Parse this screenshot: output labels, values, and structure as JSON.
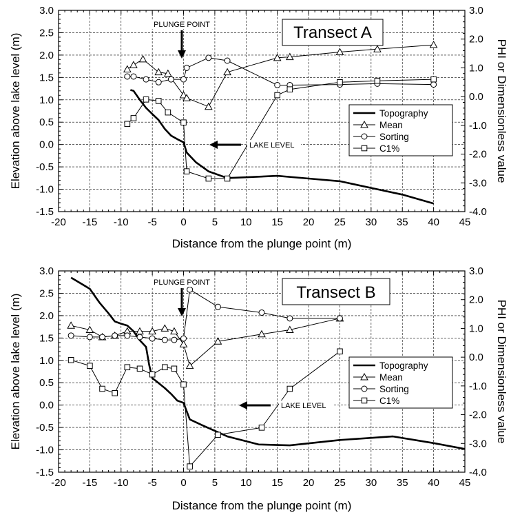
{
  "chart_data": [
    {
      "type": "line",
      "panel_title": "Transect A",
      "xlabel": "Distance from the plunge point (m)",
      "ylabel_left": "Elevation above lake level (m)",
      "ylabel_right": "PHI or Dimensionless value",
      "xlim": [
        -20,
        45
      ],
      "ylim_left": [
        -1.5,
        3.0
      ],
      "ylim_right": [
        -4.0,
        3.0
      ],
      "x_ticks": [
        "-20",
        "-15",
        "-10",
        "-5",
        "0",
        "5",
        "10",
        "15",
        "20",
        "25",
        "30",
        "35",
        "40",
        "45"
      ],
      "y_left_ticks": [
        "3.0",
        "2.5",
        "2.0",
        "1.5",
        "1.0",
        "0.5",
        "0.0",
        "-0.5",
        "-1.0",
        "-1.5"
      ],
      "y_right_ticks": [
        "3.0",
        "2.0",
        "1.0",
        "0.0",
        "-1.0",
        "-2.0",
        "-3.0",
        "-4.0"
      ],
      "grid": true,
      "legend_position": "right-center",
      "annotations": {
        "plunge_point": "PLUNGE POINT",
        "lake_level": "LAKE LEVEL"
      },
      "series": [
        {
          "name": "Topography",
          "axis": "left",
          "marker": "none",
          "x": [
            -8.5,
            -8,
            -7,
            -6,
            -5,
            -4,
            -3,
            -2,
            -1,
            0,
            0.5,
            2,
            4,
            7,
            15,
            20,
            25,
            30,
            35,
            40
          ],
          "y": [
            1.22,
            1.2,
            1.0,
            0.82,
            0.68,
            0.55,
            0.35,
            0.2,
            0.12,
            0.05,
            -0.18,
            -0.4,
            -0.6,
            -0.75,
            -0.7,
            -0.76,
            -0.82,
            -0.97,
            -1.12,
            -1.32
          ]
        },
        {
          "name": "Mean",
          "axis": "right",
          "marker": "triangle",
          "x": [
            -9,
            -8,
            -6.5,
            -4,
            -2.5,
            0,
            0.5,
            4,
            7,
            15,
            17,
            25,
            31,
            40
          ],
          "y": [
            0.95,
            1.1,
            1.3,
            0.85,
            0.8,
            0.05,
            -0.05,
            -0.35,
            0.85,
            1.35,
            1.38,
            1.55,
            1.65,
            1.8
          ]
        },
        {
          "name": "Sorting",
          "axis": "right",
          "marker": "circle",
          "x": [
            -9,
            -8,
            -6,
            -4,
            -2,
            0,
            0.5,
            4,
            7,
            15,
            17,
            25,
            31,
            40
          ],
          "y": [
            0.7,
            0.7,
            0.6,
            0.5,
            0.6,
            0.6,
            1.0,
            1.35,
            1.25,
            0.4,
            0.4,
            0.42,
            0.45,
            0.42
          ]
        },
        {
          "name": "C1%",
          "axis": "right",
          "marker": "square",
          "x": [
            -9,
            -8,
            -6,
            -4,
            -2.5,
            0,
            0.5,
            4,
            7,
            15,
            17,
            25,
            31,
            40
          ],
          "y": [
            -0.95,
            -0.75,
            -0.1,
            -0.15,
            -0.55,
            -0.9,
            -2.6,
            -2.85,
            -2.85,
            0.05,
            0.25,
            0.5,
            0.55,
            0.6
          ]
        }
      ]
    },
    {
      "type": "line",
      "panel_title": "Transect B",
      "xlabel": "Distance from the plunge point (m)",
      "ylabel_left": "Elevation above lake level (m)",
      "ylabel_right": "PHI or Dimensionless value",
      "xlim": [
        -20,
        45
      ],
      "ylim_left": [
        -1.5,
        3.0
      ],
      "ylim_right": [
        -4.0,
        3.0
      ],
      "x_ticks": [
        "-20",
        "-15",
        "-10",
        "-5",
        "0",
        "5",
        "10",
        "15",
        "20",
        "25",
        "30",
        "35",
        "40",
        "45"
      ],
      "y_left_ticks": [
        "3.0",
        "2.5",
        "2.0",
        "1.5",
        "1.0",
        "0.5",
        "0.0",
        "-0.5",
        "-1.0",
        "-1.5"
      ],
      "y_right_ticks": [
        "3.0",
        "2.0",
        "1.0",
        "0.0",
        "-1.0",
        "-2.0",
        "-3.0",
        "-4.0"
      ],
      "grid": true,
      "legend_position": "right-center",
      "annotations": {
        "plunge_point": "PLUNGE POINT",
        "lake_level": "LAKE LEVEL"
      },
      "series": [
        {
          "name": "Topography",
          "axis": "left",
          "marker": "none",
          "x": [
            -18,
            -15,
            -13.5,
            -12,
            -11,
            -10,
            -9,
            -8,
            -7,
            -6,
            -5.5,
            -5,
            -4.5,
            -3,
            -2,
            -1,
            0,
            1,
            3,
            7,
            12,
            17,
            25,
            33.5,
            40,
            45
          ],
          "y": [
            2.85,
            2.6,
            2.3,
            2.05,
            1.87,
            1.82,
            1.78,
            1.65,
            1.45,
            1.3,
            0.9,
            0.6,
            0.55,
            0.38,
            0.25,
            0.1,
            0.05,
            -0.32,
            -0.45,
            -0.7,
            -0.88,
            -0.9,
            -0.78,
            -0.7,
            -0.85,
            -0.98
          ]
        },
        {
          "name": "Mean",
          "axis": "right",
          "marker": "triangle",
          "x": [
            -18,
            -15,
            -13,
            -11,
            -9,
            -7,
            -5,
            -3,
            -1.5,
            0,
            1,
            5.5,
            12.5,
            17,
            25
          ],
          "y": [
            1.1,
            0.95,
            0.7,
            0.75,
            0.9,
            0.9,
            0.9,
            1.0,
            0.9,
            0.45,
            -0.3,
            0.55,
            0.8,
            0.95,
            1.35
          ]
        },
        {
          "name": "Sorting",
          "axis": "right",
          "marker": "circle",
          "x": [
            -18,
            -15,
            -13,
            -11,
            -9,
            -7,
            -5,
            -3,
            -1.5,
            0,
            1,
            5.5,
            12.5,
            17,
            25
          ],
          "y": [
            0.75,
            0.7,
            0.7,
            0.75,
            0.75,
            0.7,
            0.65,
            0.6,
            0.6,
            0.65,
            2.35,
            1.75,
            1.55,
            1.35,
            1.35
          ]
        },
        {
          "name": "C1%",
          "axis": "right",
          "marker": "square",
          "x": [
            -18,
            -15,
            -13,
            -11,
            -9,
            -7,
            -5,
            -3,
            -1.5,
            0,
            1,
            5.5,
            12.5,
            17,
            25
          ],
          "y": [
            -0.1,
            -0.3,
            -1.1,
            -1.25,
            -0.35,
            -0.4,
            -0.6,
            -0.35,
            -0.4,
            -0.95,
            -3.8,
            -2.7,
            -2.45,
            -1.1,
            0.2
          ]
        }
      ]
    }
  ]
}
